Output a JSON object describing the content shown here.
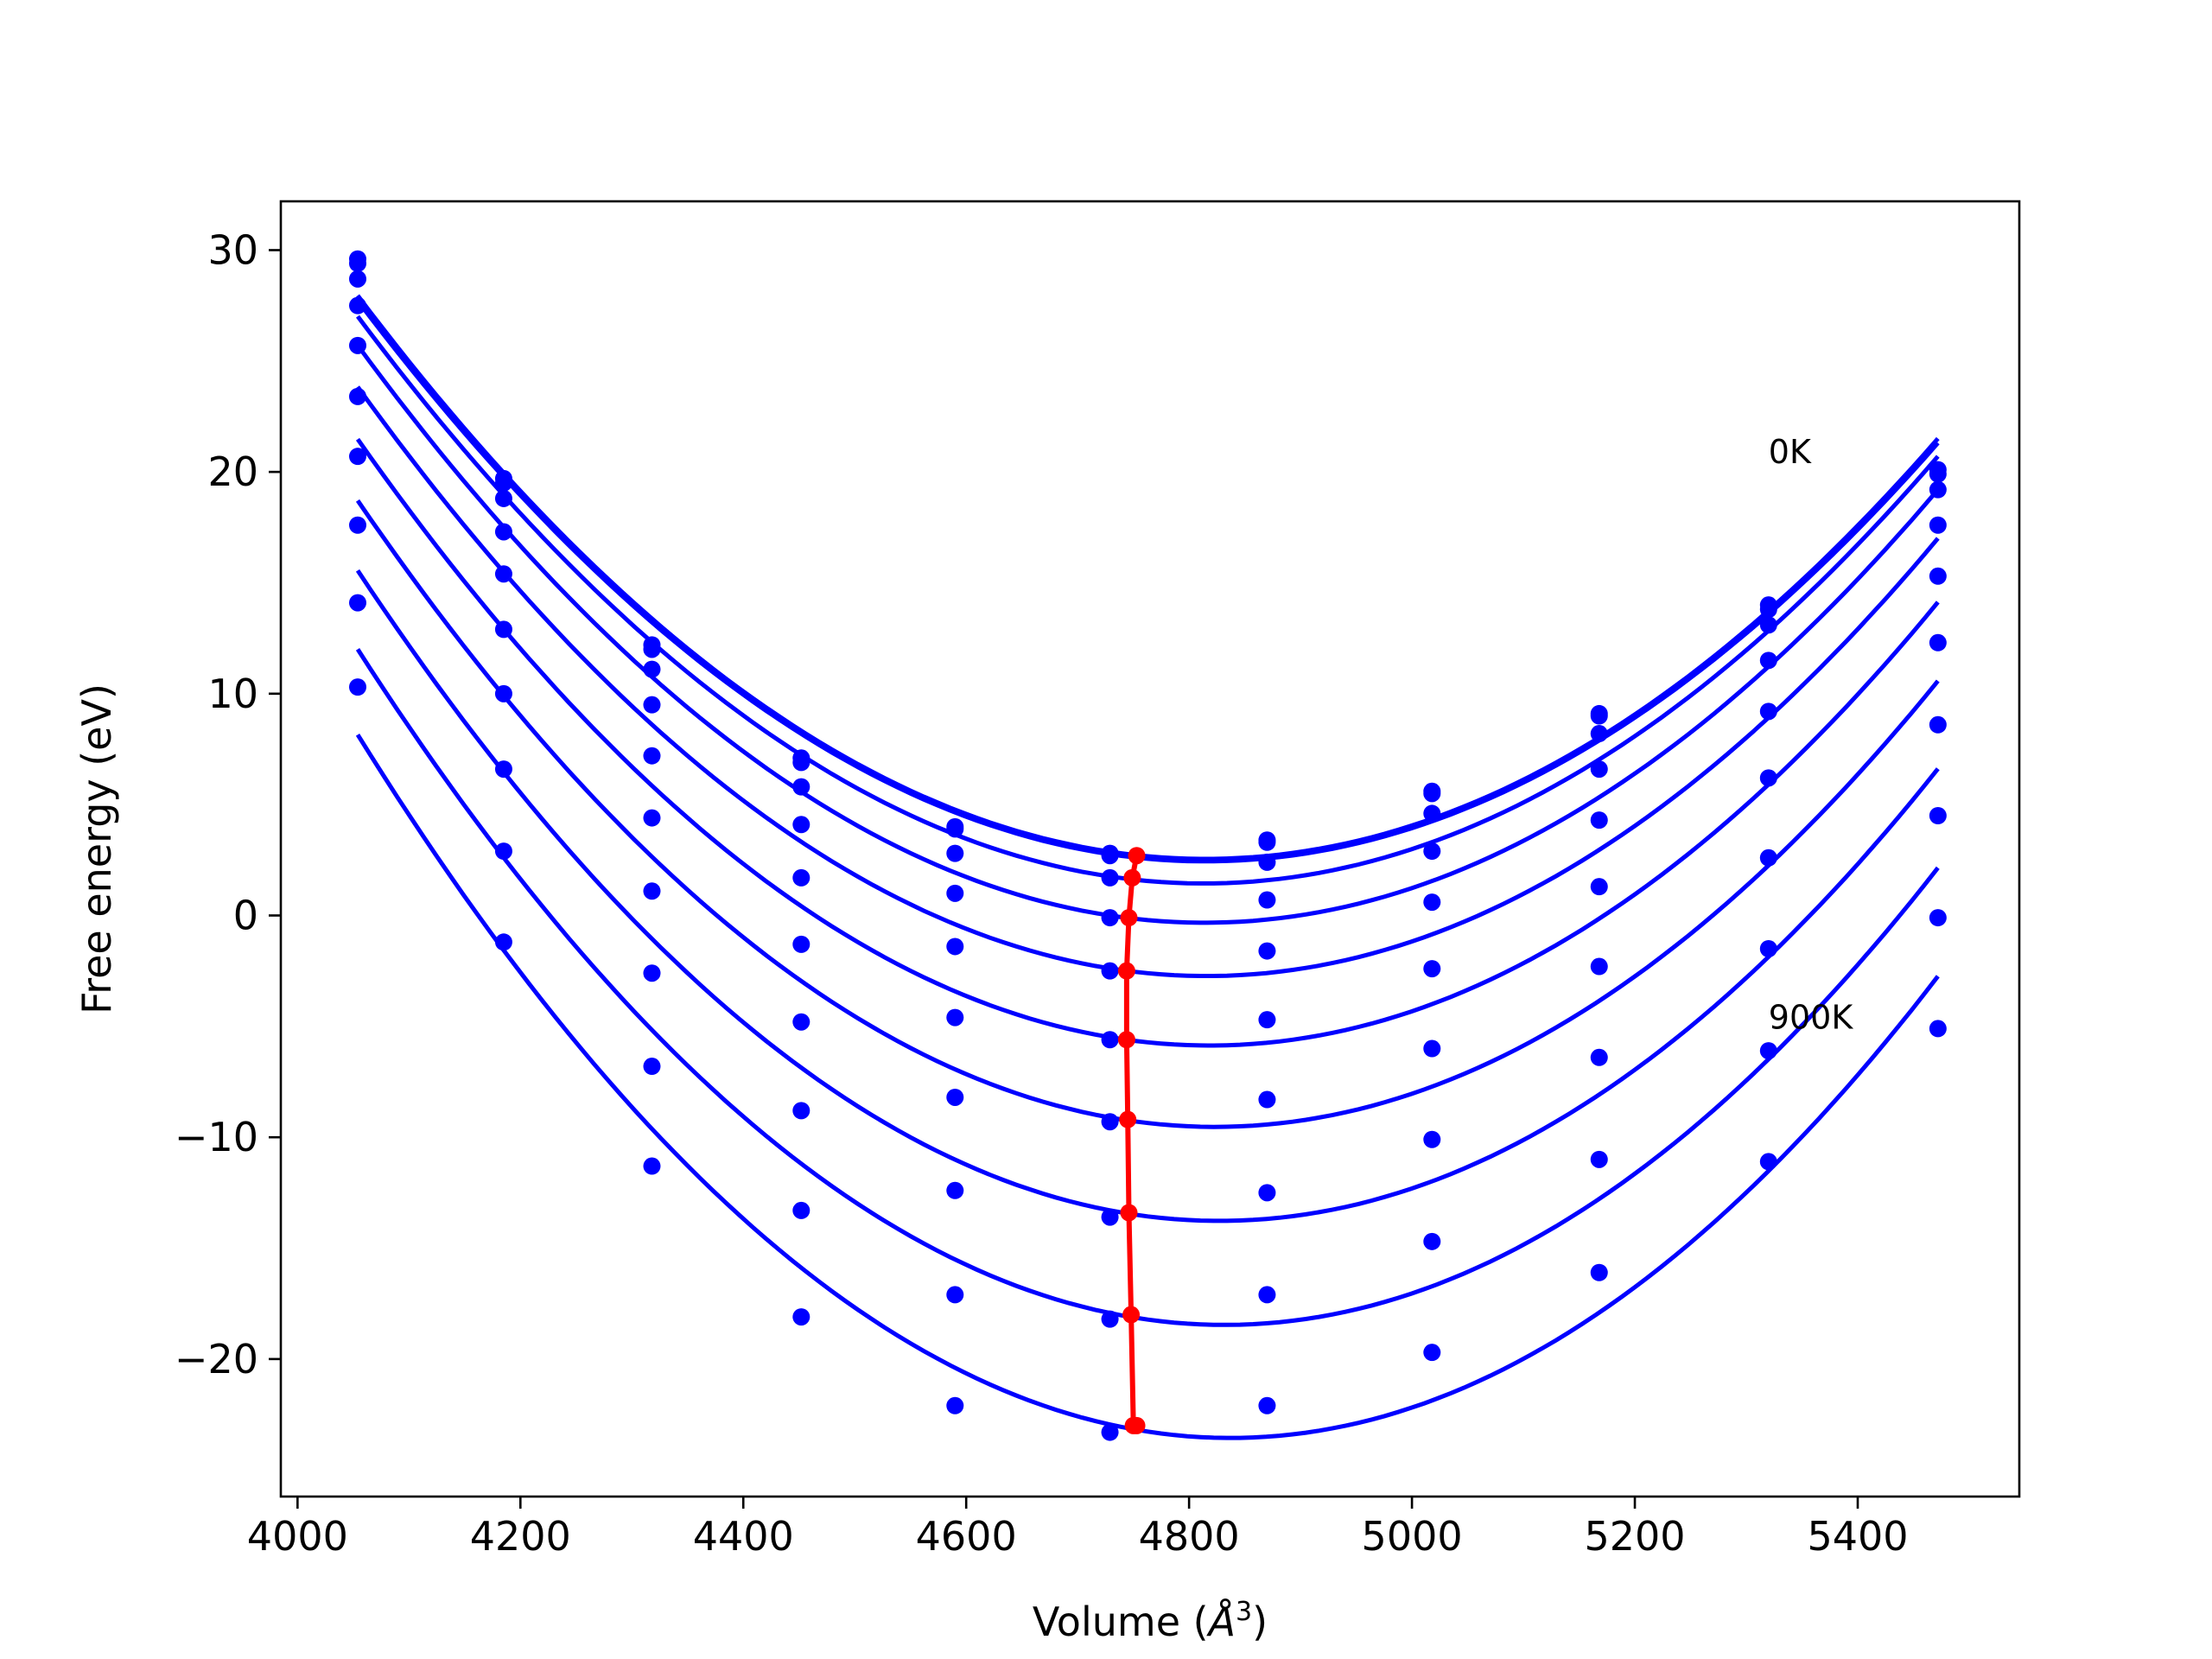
{
  "chart_data": {
    "type": "line",
    "xlabel_prefix": "Volume (",
    "xlabel_unit": "Å",
    "xlabel_exp": "3",
    "xlabel_suffix": ")",
    "ylabel": "Free energy (eV)",
    "xlim": [
      3985,
      5545
    ],
    "ylim": [
      -26.2,
      32.2
    ],
    "xticks": [
      4000,
      4200,
      4400,
      4600,
      4800,
      5000,
      5200,
      5400
    ],
    "yticks": [
      -20,
      -10,
      0,
      10,
      20,
      30
    ],
    "ytick_labels": [
      "−20",
      "−10",
      "0",
      "10",
      "20",
      "30"
    ],
    "grid": false,
    "annotations": [
      {
        "text": "0K",
        "x": 5320,
        "y": 20.4
      },
      {
        "text": "900K",
        "x": 5320,
        "y": -5.1
      }
    ],
    "colors": {
      "isotherms": "#0000ff",
      "minimum_line": "#ff0000"
    },
    "x": [
      4054,
      4185,
      4318,
      4452,
      4590,
      4729,
      4870,
      5018,
      5168,
      5320,
      5472
    ],
    "series": [
      {
        "values": [
          29.6,
          19.7,
          12.2,
          7.1,
          4.0,
          2.8,
          3.4,
          5.6,
          9.1,
          14.0,
          20.1
        ]
      },
      {
        "values": [
          29.4,
          19.5,
          12.0,
          6.9,
          3.9,
          2.7,
          3.3,
          5.5,
          9.0,
          13.8,
          19.9
        ]
      },
      {
        "values": [
          28.7,
          18.8,
          11.1,
          5.8,
          2.8,
          1.7,
          2.4,
          4.6,
          8.2,
          13.1,
          19.2
        ]
      },
      {
        "values": [
          27.5,
          17.3,
          9.5,
          4.1,
          1.0,
          -0.1,
          0.7,
          2.9,
          6.6,
          11.5,
          17.6
        ]
      },
      {
        "values": [
          25.7,
          15.4,
          7.2,
          1.7,
          -1.4,
          -2.5,
          -1.6,
          0.6,
          4.3,
          9.2,
          15.3
        ]
      },
      {
        "values": [
          23.4,
          12.9,
          4.4,
          -1.3,
          -4.6,
          -5.6,
          -4.7,
          -2.4,
          1.3,
          6.2,
          12.3
        ]
      },
      {
        "values": [
          20.7,
          10.0,
          1.1,
          -4.8,
          -8.2,
          -9.3,
          -8.3,
          -6.0,
          -2.3,
          2.6,
          8.6
        ]
      },
      {
        "values": [
          17.6,
          6.6,
          -2.6,
          -8.8,
          -12.4,
          -13.6,
          -12.5,
          -10.1,
          -6.4,
          -1.5,
          4.5
        ]
      },
      {
        "values": [
          14.1,
          2.9,
          -6.8,
          -13.3,
          -17.1,
          -18.2,
          -17.1,
          -14.7,
          -11.0,
          -6.1,
          -0.1
        ]
      },
      {
        "values": [
          10.3,
          -1.2,
          -11.3,
          -18.1,
          -22.1,
          -23.3,
          -22.1,
          -19.7,
          -16.1,
          -11.1,
          -5.1
        ]
      }
    ],
    "minimum_line": {
      "x": [
        4753,
        4749,
        4746,
        4744,
        4744,
        4745,
        4746,
        4748,
        4750,
        4753
      ],
      "y": [
        2.7,
        1.7,
        -0.1,
        -2.5,
        -5.6,
        -9.2,
        -13.4,
        -18.0,
        -23.0,
        -23.0
      ]
    }
  }
}
